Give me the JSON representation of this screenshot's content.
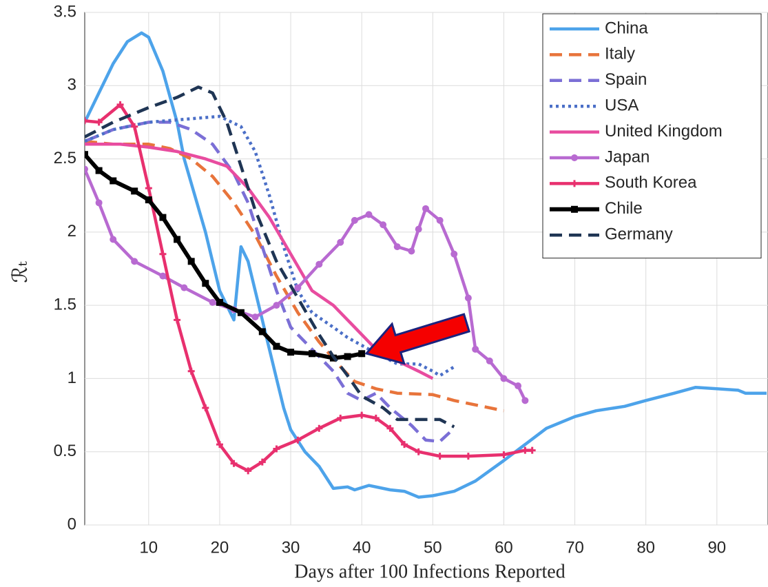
{
  "chart_data": {
    "type": "line",
    "x_label": "Days after 100 Infections Reported",
    "y_label": "ℛₜ",
    "xlim": [
      1,
      97
    ],
    "ylim": [
      0,
      3.5
    ],
    "xticks": [
      10,
      20,
      30,
      40,
      50,
      60,
      70,
      80,
      90
    ],
    "yticks": [
      0,
      0.5,
      1,
      1.5,
      2,
      2.5,
      3,
      3.5
    ],
    "grid": true,
    "legend": "upper right",
    "series": [
      {
        "name": "China",
        "color": "#4da3ea",
        "style": "solid",
        "marker": "none",
        "x": [
          1,
          3,
          5,
          7,
          9,
          10,
          12,
          14,
          15,
          18,
          20,
          22,
          23,
          24,
          26,
          28,
          29,
          30,
          32,
          34,
          36,
          38,
          39,
          41,
          44,
          46,
          48,
          50,
          53,
          56,
          58,
          60,
          63,
          66,
          70,
          73,
          77,
          80,
          84,
          87,
          90,
          93,
          94,
          97
        ],
        "values": [
          2.75,
          2.95,
          3.15,
          3.3,
          3.36,
          3.33,
          3.1,
          2.75,
          2.5,
          2.0,
          1.6,
          1.4,
          1.9,
          1.8,
          1.4,
          1.0,
          0.8,
          0.65,
          0.5,
          0.4,
          0.25,
          0.26,
          0.24,
          0.27,
          0.24,
          0.23,
          0.19,
          0.2,
          0.23,
          0.3,
          0.37,
          0.44,
          0.55,
          0.66,
          0.74,
          0.78,
          0.81,
          0.85,
          0.9,
          0.94,
          0.93,
          0.92,
          0.9,
          0.9
        ]
      },
      {
        "name": "Italy",
        "color": "#e8743b",
        "style": "dashed",
        "marker": "none",
        "x": [
          1,
          5,
          10,
          13,
          16,
          19,
          22,
          25,
          28,
          31,
          34,
          37,
          39,
          42,
          45,
          50,
          53,
          56,
          60
        ],
        "values": [
          2.62,
          2.6,
          2.6,
          2.57,
          2.5,
          2.38,
          2.2,
          1.98,
          1.7,
          1.45,
          1.25,
          1.08,
          0.98,
          0.93,
          0.9,
          0.89,
          0.85,
          0.82,
          0.78
        ]
      },
      {
        "name": "Spain",
        "color": "#7b6fd6",
        "style": "dashed",
        "marker": "none",
        "x": [
          1,
          5,
          10,
          13,
          16,
          19,
          22,
          24,
          26,
          28,
          30,
          33,
          36,
          38,
          40,
          42,
          44,
          47,
          49,
          51,
          53
        ],
        "values": [
          2.62,
          2.7,
          2.75,
          2.75,
          2.7,
          2.6,
          2.4,
          2.2,
          1.9,
          1.6,
          1.35,
          1.2,
          1.05,
          0.9,
          0.85,
          0.9,
          0.8,
          0.68,
          0.58,
          0.57,
          0.66
        ]
      },
      {
        "name": "USA",
        "color": "#4b6fc7",
        "style": "dotted",
        "marker": "none",
        "x": [
          1,
          5,
          10,
          15,
          20,
          23,
          25,
          27,
          29,
          31,
          33,
          36,
          38,
          41,
          45,
          48,
          50,
          51,
          53
        ],
        "values": [
          2.62,
          2.7,
          2.75,
          2.77,
          2.79,
          2.72,
          2.55,
          2.25,
          1.9,
          1.6,
          1.45,
          1.35,
          1.28,
          1.2,
          1.1,
          1.1,
          1.05,
          1.02,
          1.08
        ]
      },
      {
        "name": "United Kingdom",
        "color": "#e84c9f",
        "style": "solid",
        "marker": "none",
        "x": [
          1,
          6,
          10,
          14,
          18,
          21,
          24,
          27,
          30,
          33,
          36,
          39,
          42,
          45,
          48,
          50
        ],
        "values": [
          2.6,
          2.6,
          2.58,
          2.55,
          2.5,
          2.45,
          2.3,
          2.1,
          1.85,
          1.6,
          1.5,
          1.35,
          1.2,
          1.12,
          1.05,
          1.0
        ]
      },
      {
        "name": "Japan",
        "color": "#b86ad1",
        "style": "solid",
        "marker": "circle",
        "x": [
          1,
          3,
          5,
          8,
          12,
          15,
          19,
          22,
          25,
          28,
          31,
          34,
          37,
          39,
          41,
          43,
          45,
          47,
          48,
          49,
          51,
          53,
          55,
          56,
          58,
          60,
          62,
          63
        ],
        "values": [
          2.43,
          2.2,
          1.95,
          1.8,
          1.7,
          1.62,
          1.52,
          1.47,
          1.42,
          1.5,
          1.62,
          1.78,
          1.93,
          2.08,
          2.12,
          2.05,
          1.9,
          1.87,
          2.02,
          2.16,
          2.08,
          1.85,
          1.55,
          1.2,
          1.12,
          1.0,
          0.95,
          0.85
        ]
      },
      {
        "name": "South Korea",
        "color": "#e8306e",
        "style": "solid",
        "marker": "plus",
        "x": [
          1,
          3,
          6,
          8,
          10,
          12,
          14,
          16,
          18,
          20,
          22,
          24,
          26,
          28,
          31,
          34,
          37,
          40,
          42,
          44,
          46,
          48,
          51,
          55,
          60,
          63,
          64
        ],
        "values": [
          2.76,
          2.75,
          2.87,
          2.72,
          2.3,
          1.85,
          1.4,
          1.05,
          0.8,
          0.55,
          0.42,
          0.37,
          0.43,
          0.52,
          0.58,
          0.66,
          0.73,
          0.75,
          0.73,
          0.66,
          0.55,
          0.5,
          0.47,
          0.47,
          0.48,
          0.51,
          0.51
        ]
      },
      {
        "name": "Chile",
        "color": "#000000",
        "style": "solid",
        "marker": "square",
        "x": [
          1,
          3,
          5,
          8,
          10,
          12,
          14,
          16,
          18,
          20,
          23,
          26,
          28,
          30,
          33,
          36,
          38,
          40
        ],
        "values": [
          2.53,
          2.42,
          2.35,
          2.28,
          2.22,
          2.1,
          1.95,
          1.8,
          1.65,
          1.52,
          1.45,
          1.32,
          1.22,
          1.18,
          1.17,
          1.14,
          1.15,
          1.17
        ]
      },
      {
        "name": "Germany",
        "color": "#1f3554",
        "style": "dashed",
        "marker": "none",
        "x": [
          1,
          5,
          10,
          14,
          17,
          19,
          21,
          23,
          25,
          28,
          31,
          34,
          36,
          38,
          40,
          43,
          45,
          48,
          51,
          53
        ],
        "values": [
          2.65,
          2.75,
          2.85,
          2.92,
          2.99,
          2.95,
          2.75,
          2.45,
          2.15,
          1.8,
          1.55,
          1.3,
          1.15,
          1.02,
          0.88,
          0.8,
          0.72,
          0.72,
          0.72,
          0.67
        ]
      }
    ]
  }
}
